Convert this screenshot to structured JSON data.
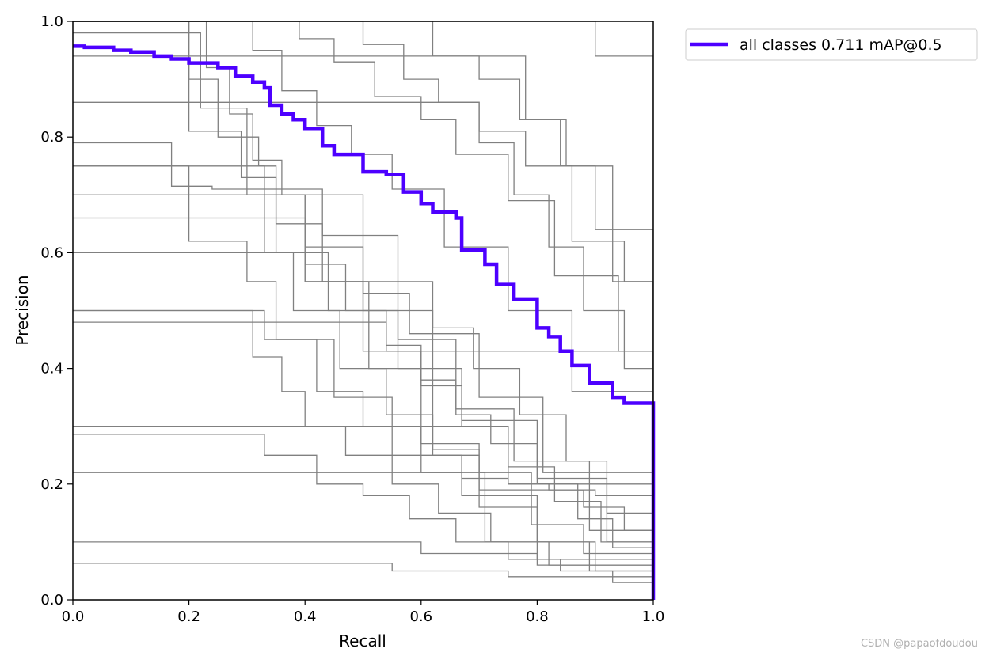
{
  "chart_data": {
    "type": "line",
    "title": "",
    "xlabel": "Recall",
    "ylabel": "Precision",
    "xlim": [
      0,
      1
    ],
    "ylim": [
      0,
      1
    ],
    "x_ticks": [
      "0.0",
      "0.2",
      "0.4",
      "0.6",
      "0.8",
      "1.0"
    ],
    "y_ticks": [
      "0.0",
      "0.2",
      "0.4",
      "0.6",
      "0.8",
      "1.0"
    ],
    "grid": false,
    "legend_position": "upper-right-outside",
    "highlight_color": "#4d00ff",
    "class_color": "#808080",
    "series": [
      {
        "name": "all classes 0.711 mAP@0.5",
        "highlight": true,
        "x": [
          0.0,
          0.02,
          0.07,
          0.1,
          0.14,
          0.17,
          0.2,
          0.25,
          0.28,
          0.31,
          0.33,
          0.34,
          0.36,
          0.38,
          0.4,
          0.43,
          0.45,
          0.5,
          0.54,
          0.57,
          0.6,
          0.62,
          0.66,
          0.67,
          0.71,
          0.73,
          0.76,
          0.8,
          0.82,
          0.84,
          0.86,
          0.89,
          0.93,
          0.95,
          1.0,
          1.0
        ],
        "y": [
          0.957,
          0.955,
          0.95,
          0.947,
          0.94,
          0.935,
          0.928,
          0.92,
          0.905,
          0.895,
          0.885,
          0.855,
          0.84,
          0.83,
          0.815,
          0.785,
          0.77,
          0.74,
          0.735,
          0.705,
          0.685,
          0.67,
          0.66,
          0.605,
          0.58,
          0.545,
          0.52,
          0.47,
          0.455,
          0.43,
          0.405,
          0.375,
          0.35,
          0.34,
          0.335,
          0.0
        ]
      },
      {
        "x": [
          0.0,
          0.03,
          0.17,
          0.24,
          0.33,
          0.4,
          0.5,
          1.0
        ],
        "y": [
          0.79,
          0.79,
          0.715,
          0.71,
          0.6,
          0.55,
          0.43,
          0.0
        ]
      },
      {
        "x": [
          0.0,
          0.2,
          0.33,
          0.43,
          0.5,
          0.62,
          0.75,
          1.0
        ],
        "y": [
          0.75,
          0.75,
          0.71,
          0.63,
          0.5,
          0.3,
          0.2,
          0.0
        ]
      },
      {
        "x": [
          0.0,
          0.17,
          0.33,
          0.42,
          0.5,
          0.6,
          0.71,
          0.89,
          1.0
        ],
        "y": [
          0.5,
          0.5,
          0.45,
          0.36,
          0.3,
          0.22,
          0.1,
          0.05,
          0.0
        ]
      },
      {
        "x": [
          0.0,
          0.4,
          0.6,
          0.8,
          1.0
        ],
        "y": [
          0.1,
          0.1,
          0.08,
          0.06,
          0.0
        ]
      },
      {
        "x": [
          0.0,
          0.4,
          0.55,
          0.75,
          1.0
        ],
        "y": [
          0.063,
          0.063,
          0.05,
          0.04,
          0.0
        ]
      },
      {
        "x": [
          0.0,
          0.1,
          0.2,
          0.29,
          0.35,
          0.44,
          0.56,
          0.67,
          0.8,
          0.92,
          1.0
        ],
        "y": [
          1.0,
          1.0,
          0.81,
          0.73,
          0.6,
          0.5,
          0.4,
          0.31,
          0.21,
          0.1,
          0.0
        ]
      },
      {
        "x": [
          0.0,
          0.17,
          0.2,
          0.3,
          0.35,
          0.45,
          0.55,
          0.67,
          0.8,
          0.9,
          1.0
        ],
        "y": [
          0.75,
          0.75,
          0.62,
          0.55,
          0.45,
          0.35,
          0.25,
          0.18,
          0.1,
          0.05,
          0.0
        ]
      },
      {
        "x": [
          0.0,
          0.11,
          0.2,
          0.25,
          0.32,
          0.35,
          0.43,
          0.56,
          0.66,
          0.76,
          0.89,
          1.0
        ],
        "y": [
          1.0,
          1.0,
          0.9,
          0.8,
          0.75,
          0.65,
          0.55,
          0.45,
          0.33,
          0.24,
          0.12,
          0.0
        ]
      },
      {
        "x": [
          0.0,
          0.21,
          0.23,
          0.27,
          0.31,
          0.36,
          0.4,
          0.5,
          0.58,
          0.7,
          0.81,
          1.0
        ],
        "y": [
          1.0,
          1.0,
          0.92,
          0.84,
          0.76,
          0.7,
          0.61,
          0.53,
          0.46,
          0.35,
          0.22,
          0.0
        ]
      },
      {
        "x": [
          0.0,
          0.28,
          0.31,
          0.36,
          0.42,
          0.48,
          0.55,
          0.64,
          0.75,
          0.86,
          1.0
        ],
        "y": [
          1.0,
          1.0,
          0.95,
          0.88,
          0.82,
          0.77,
          0.71,
          0.61,
          0.5,
          0.36,
          0.0
        ]
      },
      {
        "x": [
          0.0,
          0.35,
          0.39,
          0.45,
          0.52,
          0.6,
          0.66,
          0.75,
          0.83,
          0.94,
          1.0
        ],
        "y": [
          1.0,
          1.0,
          0.97,
          0.93,
          0.87,
          0.83,
          0.77,
          0.69,
          0.56,
          0.43,
          0.0
        ]
      },
      {
        "x": [
          0.0,
          0.46,
          0.5,
          0.57,
          0.63,
          0.7,
          0.78,
          0.86,
          0.95,
          1.0
        ],
        "y": [
          1.0,
          1.0,
          0.96,
          0.9,
          0.86,
          0.81,
          0.75,
          0.62,
          0.55,
          0.0
        ]
      },
      {
        "x": [
          0.0,
          0.57,
          0.62,
          0.7,
          0.77,
          0.85,
          0.93,
          1.0
        ],
        "y": [
          1.0,
          1.0,
          0.94,
          0.9,
          0.83,
          0.75,
          0.55,
          0.0
        ]
      },
      {
        "x": [
          0.0,
          0.88,
          0.9,
          1.0,
          1.0
        ],
        "y": [
          1.0,
          1.0,
          0.94,
          0.94,
          0.0
        ]
      },
      {
        "x": [
          0.0,
          0.13,
          0.22,
          0.3,
          0.4,
          0.51,
          0.6,
          0.7,
          0.8,
          1.0
        ],
        "y": [
          0.98,
          0.98,
          0.85,
          0.7,
          0.55,
          0.4,
          0.27,
          0.16,
          0.07,
          0.0
        ]
      },
      {
        "x": [
          0.0,
          0.17,
          0.24,
          0.33,
          0.42,
          0.5,
          0.58,
          0.66,
          0.75,
          0.84,
          0.93,
          1.0
        ],
        "y": [
          0.286,
          0.286,
          0.286,
          0.25,
          0.2,
          0.18,
          0.14,
          0.1,
          0.07,
          0.05,
          0.03,
          0.0
        ]
      },
      {
        "x": [
          0.0,
          0.25,
          0.31,
          0.36,
          0.4,
          0.47,
          0.55,
          0.63,
          0.72,
          0.82,
          1.0
        ],
        "y": [
          0.5,
          0.5,
          0.42,
          0.36,
          0.3,
          0.25,
          0.2,
          0.15,
          0.1,
          0.06,
          0.0
        ]
      },
      {
        "x": [
          0.0,
          0.3,
          0.38,
          0.46,
          0.54,
          0.62,
          0.7,
          0.79,
          0.88,
          1.0
        ],
        "y": [
          0.6,
          0.6,
          0.5,
          0.4,
          0.32,
          0.25,
          0.19,
          0.13,
          0.08,
          0.0
        ]
      },
      {
        "x": [
          0.0,
          0.5,
          0.54,
          0.6,
          0.66,
          0.72,
          0.8,
          0.87,
          0.93,
          1.0
        ],
        "y": [
          0.48,
          0.48,
          0.43,
          0.38,
          0.32,
          0.27,
          0.2,
          0.14,
          0.09,
          0.0
        ]
      },
      {
        "x": [
          0.0,
          0.6,
          0.67,
          0.75,
          0.82,
          0.9,
          1.0
        ],
        "y": [
          0.22,
          0.22,
          0.21,
          0.2,
          0.19,
          0.18,
          0.0
        ]
      },
      {
        "x": [
          0.0,
          0.55,
          0.62,
          0.7,
          0.79,
          0.88,
          0.95,
          1.0
        ],
        "y": [
          0.3,
          0.3,
          0.26,
          0.22,
          0.19,
          0.16,
          0.12,
          0.0
        ]
      },
      {
        "x": [
          0.0,
          0.33,
          0.4,
          0.47,
          0.54,
          0.6,
          0.67,
          0.75,
          0.83,
          0.91,
          1.0
        ],
        "y": [
          0.66,
          0.66,
          0.58,
          0.5,
          0.44,
          0.37,
          0.3,
          0.23,
          0.17,
          0.1,
          0.0
        ]
      },
      {
        "x": [
          0.0,
          0.45,
          0.5,
          0.56,
          0.62,
          0.69,
          0.77,
          0.85,
          0.92,
          1.0
        ],
        "y": [
          0.7,
          0.7,
          0.63,
          0.55,
          0.47,
          0.4,
          0.32,
          0.24,
          0.15,
          0.0
        ]
      },
      {
        "x": [
          0.0,
          0.65,
          0.7,
          0.76,
          0.82,
          0.88,
          0.95,
          1.0
        ],
        "y": [
          0.86,
          0.86,
          0.79,
          0.7,
          0.61,
          0.5,
          0.4,
          0.0
        ]
      },
      {
        "x": [
          0.0,
          0.72,
          0.78,
          0.84,
          0.9,
          1.0,
          1.0
        ],
        "y": [
          0.94,
          0.94,
          0.83,
          0.75,
          0.64,
          0.56,
          0.0
        ]
      }
    ]
  },
  "watermark": "CSDN @papaofdoudou"
}
